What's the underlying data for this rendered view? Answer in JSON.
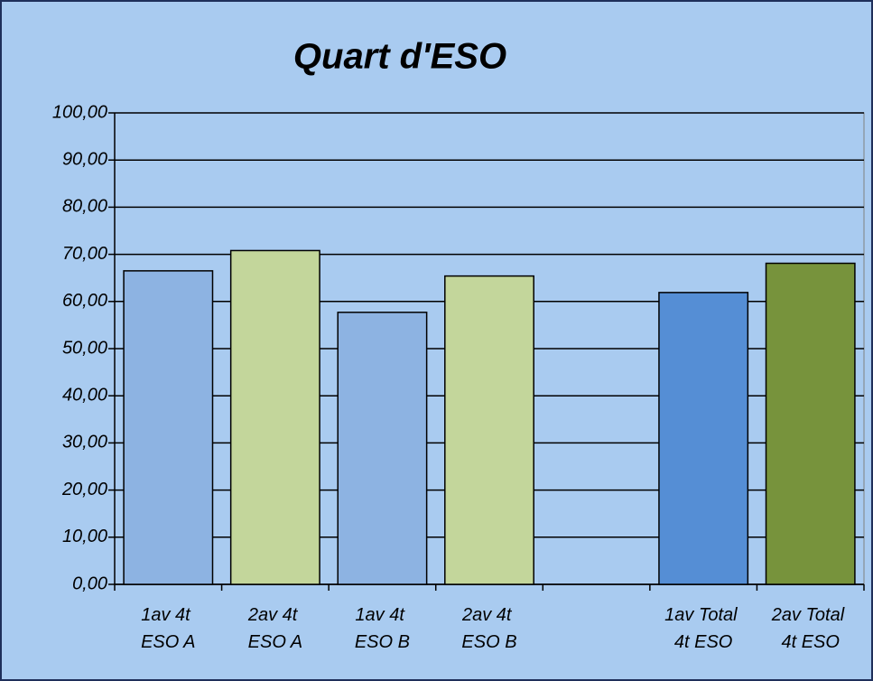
{
  "chart_data": {
    "type": "bar",
    "title": "Quart d'ESO",
    "categories": [
      "1av 4t ESO A",
      "2av 4t ESO A",
      "1av 4t ESO B",
      "2av 4t ESO B",
      null,
      "1av Total 4t ESO",
      "2av Total 4t ESO"
    ],
    "values": [
      66.5,
      70.8,
      57.7,
      65.4,
      null,
      61.9,
      68.1
    ],
    "colors": [
      "#8db3e2",
      "#c3d69b",
      "#8db3e2",
      "#c3d69b",
      null,
      "#558ed5",
      "#77933c"
    ],
    "ylim": [
      0,
      100
    ],
    "yticks": [
      {
        "value": 0,
        "label": "0,00"
      },
      {
        "value": 10,
        "label": "10,00"
      },
      {
        "value": 20,
        "label": "20,00"
      },
      {
        "value": 30,
        "label": "30,00"
      },
      {
        "value": 40,
        "label": "40,00"
      },
      {
        "value": 50,
        "label": "50,00"
      },
      {
        "value": 60,
        "label": "60,00"
      },
      {
        "value": 70,
        "label": "70,00"
      },
      {
        "value": 80,
        "label": "80,00"
      },
      {
        "value": 90,
        "label": "90,00"
      },
      {
        "value": 100,
        "label": "100,00"
      }
    ],
    "grid": true
  }
}
